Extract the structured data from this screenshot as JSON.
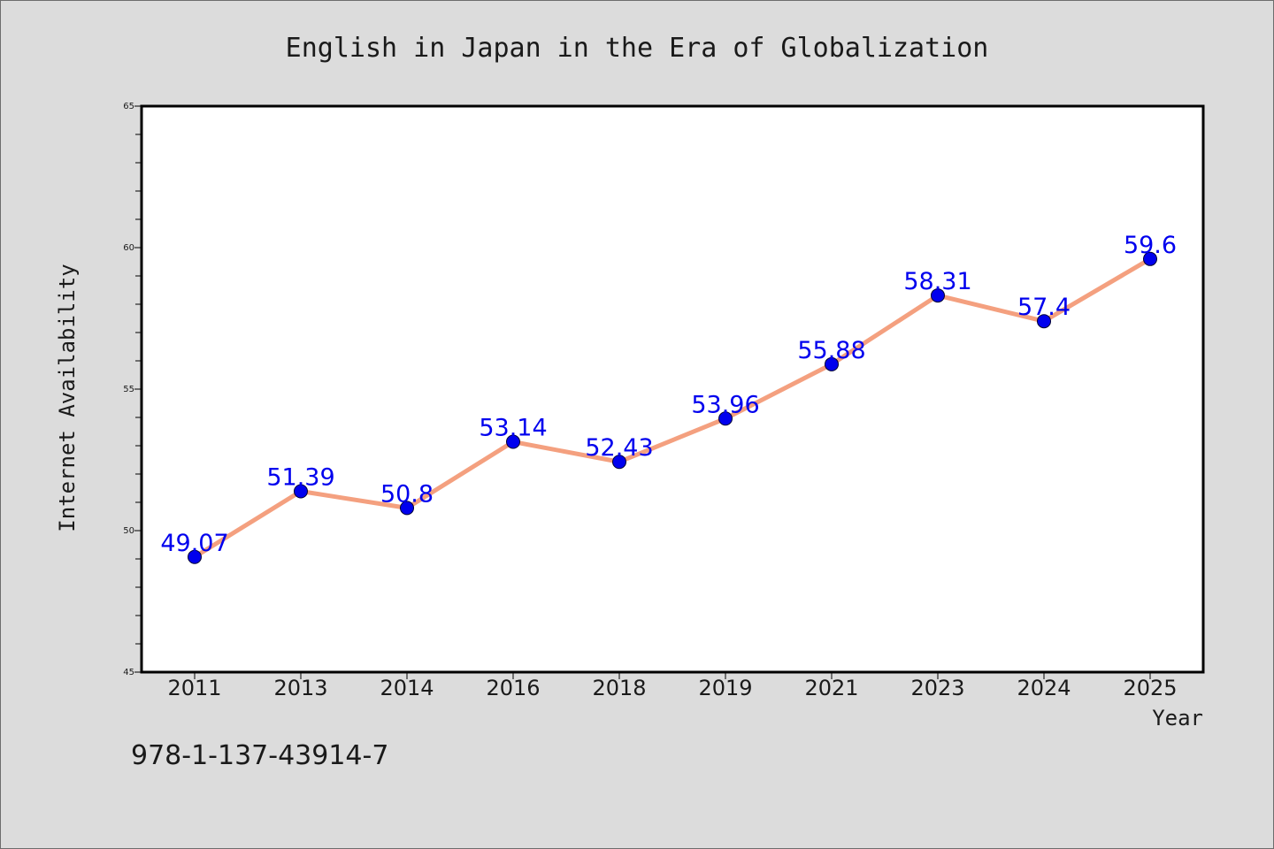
{
  "chart_data": {
    "type": "line",
    "title": "English in Japan in the Era of Globalization",
    "xlabel": "Year",
    "ylabel": "Internet Availability",
    "categories": [
      "2011",
      "2013",
      "2014",
      "2016",
      "2018",
      "2019",
      "2021",
      "2023",
      "2024",
      "2025"
    ],
    "series": [
      {
        "values": [
          49.07,
          51.39,
          50.8,
          53.14,
          52.43,
          53.96,
          55.88,
          58.31,
          57.4,
          59.6
        ],
        "labels": [
          "49.07",
          "51.39",
          "50.8",
          "53.14",
          "52.43",
          "53.96",
          "55.88",
          "58.31",
          "57.4",
          "59.6"
        ],
        "line_color": "#f4a07f",
        "marker_color": "#0000ee"
      }
    ],
    "ylim": [
      45,
      65
    ],
    "yticks": [
      "45",
      "50",
      "55",
      "60",
      "65"
    ],
    "grid": false,
    "legend": "none",
    "label_color": "#0000ee"
  },
  "footer": {
    "code": "978-1-137-43914-7"
  },
  "colors": {
    "background": "#dcdcdc",
    "plot_background": "#ffffff"
  }
}
